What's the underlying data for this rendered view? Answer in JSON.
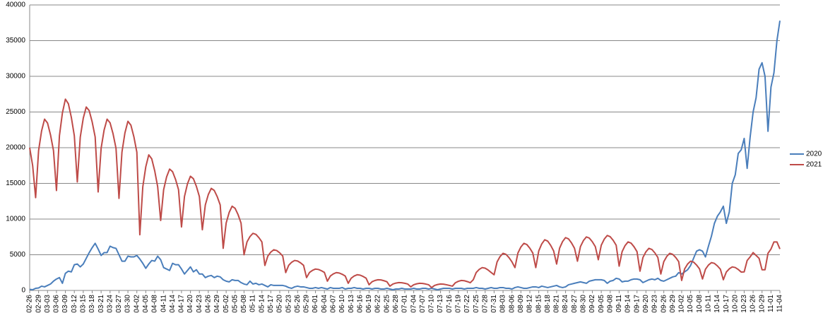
{
  "chart_data": {
    "type": "line",
    "ylim": [
      0,
      40000
    ],
    "yticks": [
      0,
      5000,
      10000,
      15000,
      20000,
      25000,
      30000,
      35000,
      40000
    ],
    "grid": true,
    "legend": "right",
    "categories": [
      "02-26",
      null,
      null,
      "02-29",
      null,
      null,
      "03-03",
      null,
      null,
      "03-06",
      null,
      null,
      "03-09",
      null,
      null,
      "03-12",
      null,
      null,
      "03-15",
      null,
      null,
      "03-18",
      null,
      null,
      "03-21",
      null,
      null,
      "03-24",
      null,
      null,
      "03-27",
      null,
      null,
      "03-30",
      null,
      null,
      "04-02",
      null,
      null,
      "04-05",
      null,
      null,
      "04-08",
      null,
      null,
      "04-11",
      null,
      null,
      "04-14",
      null,
      null,
      "04-17",
      null,
      null,
      "04-20",
      null,
      null,
      "04-23",
      null,
      null,
      "04-26",
      null,
      null,
      "04-29",
      null,
      null,
      "05-02",
      null,
      null,
      "05-05",
      null,
      null,
      "05-08",
      null,
      null,
      "05-11",
      null,
      null,
      "05-14",
      null,
      null,
      "05-17",
      null,
      null,
      "05-20",
      null,
      null,
      "05-23",
      null,
      null,
      "05-26",
      null,
      null,
      "05-29",
      null,
      null,
      "06-01",
      null,
      null,
      "06-04",
      null,
      null,
      "06-07",
      null,
      null,
      "06-10",
      null,
      null,
      "06-13",
      null,
      null,
      "06-16",
      null,
      null,
      "06-19",
      null,
      null,
      "06-22",
      null,
      null,
      "06-25",
      null,
      null,
      "06-28",
      null,
      null,
      "07-01",
      null,
      null,
      "07-04",
      null,
      null,
      "07-07",
      null,
      null,
      "07-10",
      null,
      null,
      "07-13",
      null,
      null,
      "07-16",
      null,
      null,
      "07-19",
      null,
      null,
      "07-22",
      null,
      null,
      "07-25",
      null,
      null,
      "07-28",
      null,
      null,
      "07-31",
      null,
      null,
      "08-03",
      null,
      null,
      "08-06",
      null,
      null,
      "08-09",
      null,
      null,
      "08-12",
      null,
      null,
      "08-15",
      null,
      null,
      "08-18",
      null,
      null,
      "08-21",
      null,
      null,
      "08-24",
      null,
      null,
      "08-27",
      null,
      null,
      "08-30",
      null,
      null,
      "09-02",
      null,
      null,
      "09-05",
      null,
      null,
      "09-08",
      null,
      null,
      "09-11",
      null,
      null,
      "09-14",
      null,
      null,
      "09-17",
      null,
      null,
      "09-20",
      null,
      null,
      "09-23",
      null,
      null,
      "09-26",
      null,
      null,
      "09-29",
      null,
      null,
      "10-02",
      null,
      null,
      "10-05",
      null,
      null,
      "10-08",
      null,
      null,
      "10-11",
      null,
      null,
      "10-14",
      null,
      null,
      "10-17",
      null,
      null,
      "10-20",
      null,
      null,
      "10-23",
      null,
      null,
      "10-26",
      null,
      null,
      "10-29",
      null,
      null,
      "11-01",
      null,
      null,
      "11-04"
    ],
    "series": [
      {
        "name": "2020",
        "color": "#4a7ebb",
        "values": [
          150,
          100,
          300,
          350,
          600,
          500,
          700,
          900,
          1300,
          1600,
          1800,
          1000,
          2400,
          2700,
          2600,
          3600,
          3700,
          3300,
          3700,
          4500,
          5300,
          6000,
          6600,
          5800,
          4900,
          5300,
          5300,
          6200,
          6000,
          5900,
          5000,
          4100,
          4100,
          4800,
          4700,
          4700,
          4900,
          4400,
          3800,
          3100,
          3700,
          4200,
          4100,
          4800,
          4300,
          3200,
          3000,
          2800,
          3800,
          3600,
          3600,
          3000,
          2300,
          2800,
          3300,
          2600,
          2900,
          2300,
          2300,
          1800,
          2000,
          2100,
          1800,
          2000,
          1900,
          1500,
          1300,
          1200,
          1500,
          1400,
          1400,
          1100,
          900,
          800,
          1300,
          900,
          1000,
          800,
          900,
          700,
          500,
          800,
          700,
          700,
          700,
          700,
          600,
          400,
          300,
          500,
          600,
          500,
          500,
          400,
          300,
          300,
          400,
          300,
          400,
          300,
          200,
          400,
          300,
          300,
          300,
          400,
          200,
          300,
          300,
          400,
          300,
          300,
          200,
          300,
          300,
          200,
          300,
          300,
          200,
          200,
          300,
          200,
          100,
          200,
          200,
          300,
          200,
          200,
          200,
          300,
          200,
          200,
          300,
          300,
          200,
          300,
          200,
          100,
          200,
          300,
          300,
          300,
          200,
          300,
          300,
          300,
          200,
          300,
          300,
          300,
          400,
          300,
          300,
          200,
          300,
          400,
          300,
          300,
          400,
          400,
          300,
          300,
          200,
          400,
          500,
          400,
          300,
          300,
          400,
          500,
          500,
          400,
          600,
          500,
          400,
          500,
          600,
          700,
          500,
          400,
          500,
          800,
          900,
          1000,
          1100,
          1200,
          1100,
          1000,
          1300,
          1400,
          1500,
          1500,
          1500,
          1400,
          1000,
          1300,
          1400,
          1700,
          1600,
          1200,
          1300,
          1300,
          1500,
          1600,
          1600,
          1500,
          1100,
          1300,
          1500,
          1600,
          1500,
          1700,
          1400,
          1300,
          1500,
          1700,
          1900,
          2000,
          2500,
          2300,
          2600,
          2900,
          3500,
          4500,
          5500,
          5700,
          5500,
          4700,
          6200,
          7600,
          9400,
          10400,
          11000,
          11800,
          9400,
          11000,
          15000,
          16200,
          19200,
          19700,
          21300,
          17100,
          21500,
          25000,
          27000,
          31000,
          31900,
          30000,
          22300,
          28500,
          30500,
          35000,
          37800
        ]
      },
      {
        "name": "2021",
        "color": "#be4b48",
        "values": [
          20000,
          17500,
          13000,
          19600,
          22350,
          24000,
          23450,
          21800,
          19600,
          14000,
          21680,
          24880,
          26800,
          26160,
          24240,
          21680,
          15200,
          21500,
          24130,
          25700,
          25180,
          23600,
          21500,
          13800,
          19920,
          22470,
          24000,
          23490,
          21960,
          19920,
          12900,
          19380,
          22080,
          23700,
          23160,
          21540,
          19380,
          7800,
          14520,
          17320,
          19000,
          18440,
          16760,
          14520,
          9800,
          14120,
          15920,
          17000,
          16640,
          15560,
          14120,
          8900,
          13160,
          14940,
          16000,
          15650,
          14580,
          13160,
          8500,
          11980,
          13430,
          14300,
          14010,
          13140,
          11980,
          5900,
          9440,
          10920,
          11800,
          11500,
          10620,
          9440,
          5000,
          6800,
          7550,
          8000,
          7850,
          7400,
          6800,
          3500,
          4820,
          5370,
          5700,
          5590,
          5260,
          4820,
          2500,
          3520,
          3950,
          4200,
          4120,
          3860,
          3520,
          1800,
          2520,
          2820,
          3000,
          2940,
          2760,
          2520,
          1300,
          2020,
          2320,
          2500,
          2440,
          2260,
          2020,
          1000,
          1720,
          2020,
          2200,
          2140,
          1960,
          1720,
          800,
          1220,
          1400,
          1500,
          1470,
          1360,
          1220,
          600,
          900,
          1030,
          1100,
          1080,
          1000,
          900,
          500,
          800,
          930,
          1000,
          980,
          900,
          800,
          400,
          700,
          830,
          900,
          880,
          800,
          700,
          600,
          1080,
          1280,
          1400,
          1360,
          1240,
          1080,
          1500,
          2520,
          2950,
          3200,
          3120,
          2860,
          2520,
          2200,
          4000,
          4750,
          5200,
          5050,
          4600,
          4000,
          3200,
          5240,
          6090,
          6600,
          6430,
          5920,
          5240,
          3200,
          5540,
          6520,
          7100,
          6910,
          6320,
          5540,
          3700,
          5920,
          6850,
          7400,
          7220,
          6660,
          5920,
          4100,
          6140,
          6990,
          7500,
          7330,
          6820,
          6140,
          4300,
          6340,
          7190,
          7700,
          7530,
          7020,
          6340,
          3400,
          5440,
          6290,
          6800,
          6630,
          6120,
          5440,
          2700,
          4620,
          5420,
          5900,
          5740,
          5260,
          4620,
          2300,
          4040,
          4770,
          5200,
          5060,
          4620,
          4040,
          1400,
          3020,
          3700,
          4100,
          3970,
          3560,
          3020,
          1600,
          2980,
          3560,
          3900,
          3790,
          3440,
          2980,
          1500,
          2580,
          3030,
          3300,
          3210,
          2940,
          2580,
          2600,
          4200,
          4700,
          5300,
          4900,
          4500,
          2900,
          2900,
          5200,
          5800,
          6800,
          6800,
          5800
        ]
      }
    ]
  }
}
